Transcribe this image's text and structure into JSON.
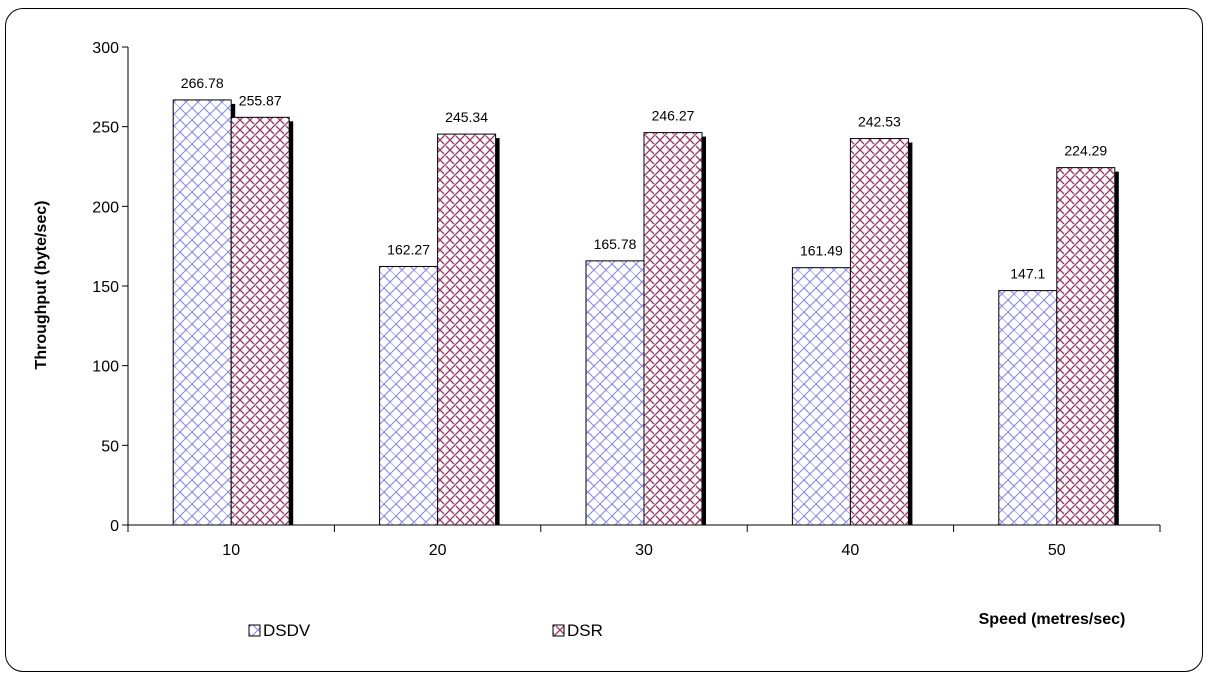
{
  "chart_data": {
    "type": "bar",
    "categories": [
      "10",
      "20",
      "30",
      "40",
      "50"
    ],
    "series": [
      {
        "name": "DSDV",
        "values": [
          266.78,
          162.27,
          165.78,
          161.49,
          147.1
        ],
        "labels": [
          "266.78",
          "162.27",
          "165.78",
          "161.49",
          "147.1"
        ],
        "color": "#8080ff",
        "pattern": "brick"
      },
      {
        "name": "DSR",
        "values": [
          255.87,
          245.34,
          246.27,
          242.53,
          224.29
        ],
        "labels": [
          "255.87",
          "245.34",
          "246.27",
          "242.53",
          "224.29"
        ],
        "color": "#993366",
        "pattern": "weave"
      }
    ],
    "title": "",
    "xlabel": "Speed (metres/sec)",
    "ylabel": "Throughput (byte/sec)",
    "ylim": [
      0,
      300
    ],
    "yticks": [
      "0",
      "50",
      "100",
      "150",
      "200",
      "250",
      "300"
    ],
    "grid": false,
    "legend_position": "bottom-left"
  }
}
